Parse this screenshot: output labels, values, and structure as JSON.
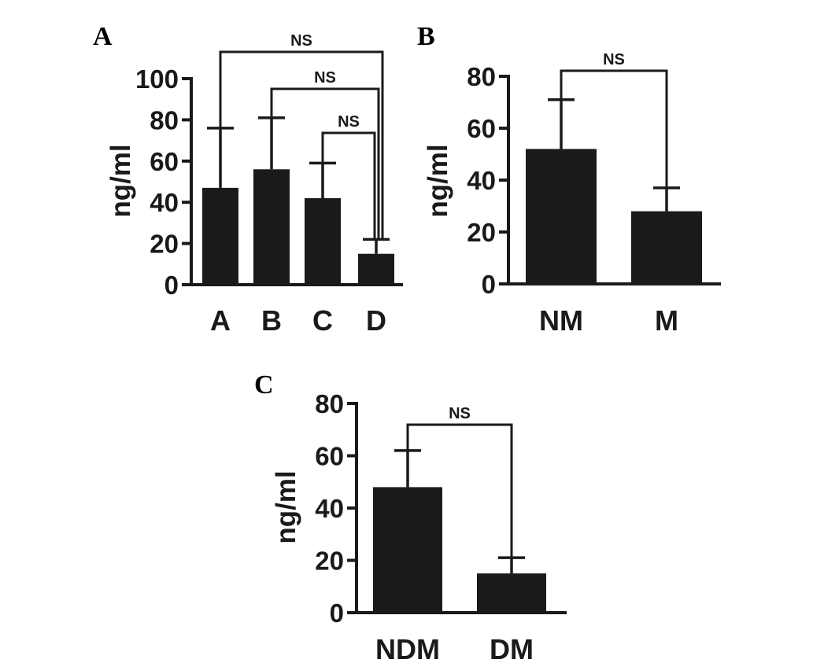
{
  "colors": {
    "bar": "#1a1a1a",
    "background": "#ffffff"
  },
  "chart_data": [
    {
      "type": "bar",
      "panel_label": "A",
      "ylabel": "ng/ml",
      "ylim": [
        0,
        100
      ],
      "yticks": [
        0,
        20,
        40,
        60,
        80,
        100
      ],
      "categories": [
        "A",
        "B",
        "C",
        "D"
      ],
      "values": [
        47,
        56,
        42,
        15
      ],
      "error_upper": [
        76,
        81,
        59,
        22
      ],
      "comparisons": [
        {
          "from": "A",
          "to": "D",
          "label": "NS"
        },
        {
          "from": "B",
          "to": "D",
          "label": "NS"
        },
        {
          "from": "C",
          "to": "D",
          "label": "NS"
        }
      ]
    },
    {
      "type": "bar",
      "panel_label": "B",
      "ylabel": "ng/ml",
      "ylim": [
        0,
        80
      ],
      "yticks": [
        0,
        20,
        40,
        60,
        80
      ],
      "categories": [
        "NM",
        "M"
      ],
      "values": [
        52,
        28
      ],
      "error_upper": [
        71,
        37
      ],
      "comparisons": [
        {
          "from": "NM",
          "to": "M",
          "label": "NS"
        }
      ]
    },
    {
      "type": "bar",
      "panel_label": "C",
      "ylabel": "ng/ml",
      "ylim": [
        0,
        80
      ],
      "yticks": [
        0,
        20,
        40,
        60,
        80
      ],
      "categories": [
        "NDM",
        "DM"
      ],
      "values": [
        48,
        15
      ],
      "error_upper": [
        62,
        21
      ],
      "comparisons": [
        {
          "from": "NDM",
          "to": "DM",
          "label": "NS"
        }
      ]
    }
  ]
}
